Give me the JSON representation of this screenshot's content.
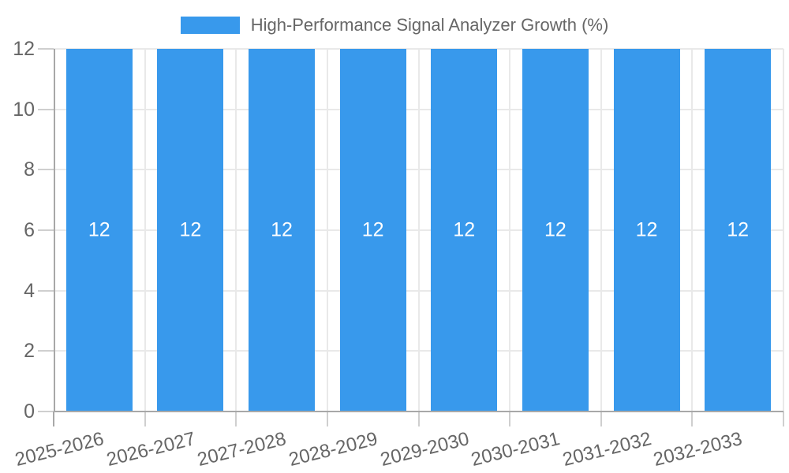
{
  "chart_data": {
    "type": "bar",
    "title": "High-Performance Signal Analyzer Growth (%)",
    "legend": {
      "position": "top",
      "label": "High-Performance Signal Analyzer Growth (%)"
    },
    "categories": [
      "2025-2026",
      "2026-2027",
      "2027-2028",
      "2028-2029",
      "2029-2030",
      "2030-2031",
      "2031-2032",
      "2032-2033"
    ],
    "series": [
      {
        "name": "High-Performance Signal Analyzer Growth (%)",
        "values": [
          12,
          12,
          12,
          12,
          12,
          12,
          12,
          12
        ]
      }
    ],
    "bar_value_labels": [
      "12",
      "12",
      "12",
      "12",
      "12",
      "12",
      "12",
      "12"
    ],
    "xlabel": "",
    "ylabel": "",
    "ylim": [
      0,
      12
    ],
    "yticks": [
      0,
      2,
      4,
      6,
      8,
      10,
      12
    ],
    "grid": true,
    "value_labels_visible": true
  },
  "colors": {
    "bar": "#3899EC",
    "grid": "#E9E9E9",
    "tick": "#CFCFCF",
    "axis": "#A8A8A8",
    "text": "#666666",
    "value_label": "#FFFFFF",
    "background": "#FFFFFF"
  }
}
